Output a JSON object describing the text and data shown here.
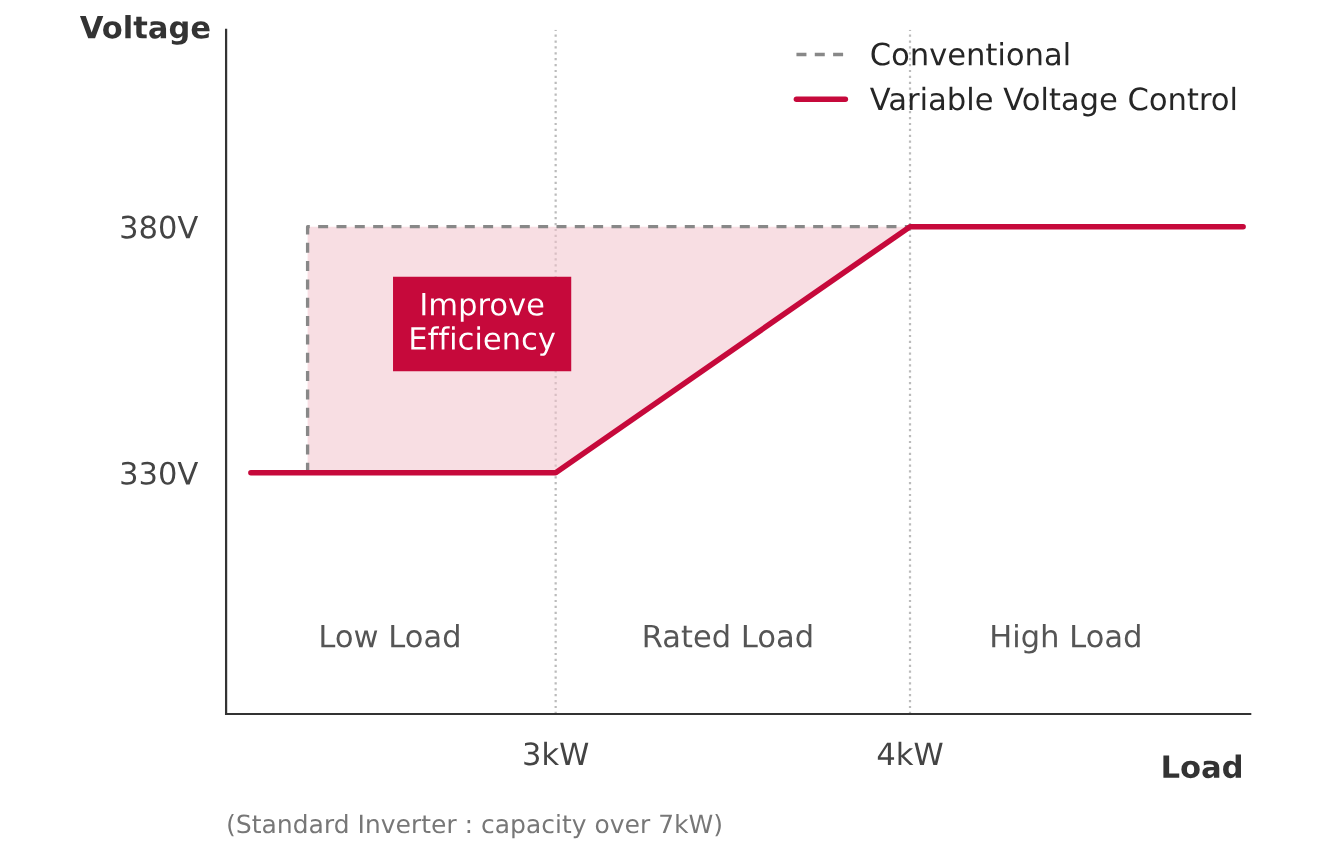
{
  "chart_data": {
    "type": "line",
    "xlabel": "Load",
    "ylabel": "Voltage",
    "xlim": [
      2.07,
      4.96
    ],
    "ylim": [
      281,
      420
    ],
    "xticks": [
      {
        "value": 3,
        "label": "3kW"
      },
      {
        "value": 4,
        "label": "4kW"
      }
    ],
    "yticks": [
      {
        "value": 330,
        "label": "330V"
      },
      {
        "value": 380,
        "label": "380V"
      }
    ],
    "series": [
      {
        "name": "Conventional",
        "color": "#888888",
        "line_style": "dashed",
        "x": [
          2.3,
          2.3,
          4.0
        ],
        "values": [
          330,
          380,
          380
        ]
      },
      {
        "name": "Variable Voltage Control",
        "color": "#c6093b",
        "line_style": "solid",
        "x": [
          2.14,
          3.0,
          4.0,
          4.94
        ],
        "values": [
          330,
          330,
          380,
          380
        ]
      }
    ],
    "ref_lines": [
      {
        "axis": "x",
        "value": 3,
        "color": "#bbbbbb",
        "line_style": "dotted"
      },
      {
        "axis": "x",
        "value": 4,
        "color": "#bbbbbb",
        "line_style": "dotted"
      }
    ],
    "annotations": [
      "Improve\nEfficiency",
      "Low Load",
      "Rated Load",
      "High Load",
      "(Standard Inverter : capacity over 7kW)"
    ],
    "legend": "top right",
    "grid": false,
    "marker": "none"
  }
}
